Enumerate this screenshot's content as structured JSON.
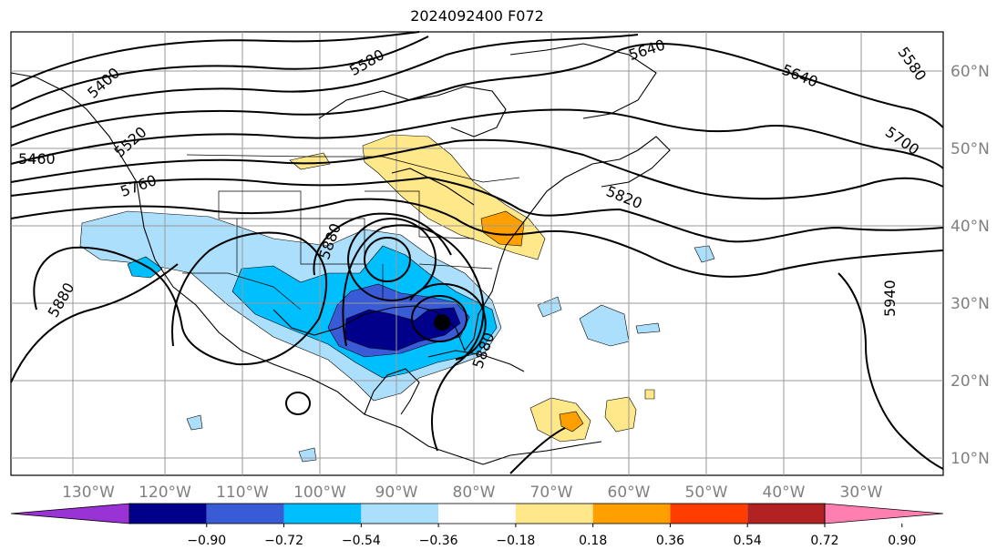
{
  "title": "2024092400 F072",
  "longitude_labels": [
    "130°W",
    "120°W",
    "110°W",
    "100°W",
    "90°W",
    "80°W",
    "70°W",
    "60°W",
    "50°W",
    "40°W",
    "30°W"
  ],
  "latitude_labels": [
    "60°N",
    "50°N",
    "40°N",
    "30°N",
    "20°N",
    "10°N"
  ],
  "colorbar": {
    "ticks": [
      "−0.90",
      "−0.72",
      "−0.54",
      "−0.36",
      "−0.18",
      "0.18",
      "0.36",
      "0.54",
      "0.72",
      "0.90"
    ],
    "colors": [
      "#9a33d6",
      "#00008b",
      "#3a5bd6",
      "#00bfff",
      "#abdffc",
      "#ffffff",
      "#ffe88a",
      "#ffa000",
      "#ff3d00",
      "#b22222",
      "#ff80b0"
    ]
  },
  "contour_labels": [
    "5400",
    "5520",
    "5460",
    "5580",
    "5640",
    "5640",
    "5580",
    "5700",
    "5760",
    "5820",
    "5880",
    "5880",
    "5880",
    "5940"
  ]
}
